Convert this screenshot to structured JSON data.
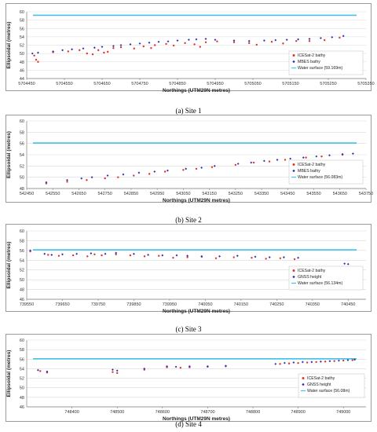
{
  "chart_data": [
    {
      "type": "scatter",
      "caption": "(a) Site 1",
      "xlabel": "Northings (UTM29N metres)",
      "ylabel": "Ellipsoidal (metres)",
      "xlim": [
        5704450,
        5705350
      ],
      "ylim": [
        44,
        60
      ],
      "xticks": [
        5704450,
        5704550,
        5704650,
        5704750,
        5704850,
        5704950,
        5705050,
        5705150,
        5705250,
        5705350
      ],
      "yticks": [
        44,
        46,
        48,
        50,
        52,
        54,
        56,
        58,
        60
      ],
      "legend_position": "right",
      "series": [
        {
          "name": "ICESat-2 bathy",
          "color": "#e8312a",
          "points": [
            [
              5704470,
              49.5
            ],
            [
              5704475,
              48.5
            ],
            [
              5704480,
              48
            ],
            [
              5704520,
              50.3
            ],
            [
              5704560,
              50.5
            ],
            [
              5704590,
              50.8
            ],
            [
              5704610,
              50
            ],
            [
              5704625,
              49.8
            ],
            [
              5704640,
              50.8
            ],
            [
              5704655,
              50.2
            ],
            [
              5704665,
              50.4
            ],
            [
              5704680,
              51.3
            ],
            [
              5704700,
              51.5
            ],
            [
              5704735,
              51.2
            ],
            [
              5704760,
              51.7
            ],
            [
              5704780,
              51.3
            ],
            [
              5704790,
              52
            ],
            [
              5704820,
              52.3
            ],
            [
              5704840,
              51.9
            ],
            [
              5704870,
              52.5
            ],
            [
              5704895,
              52.2
            ],
            [
              5704910,
              51.6
            ],
            [
              5704925,
              52.7
            ],
            [
              5704955,
              52.9
            ],
            [
              5705000,
              52.7
            ],
            [
              5705040,
              52.5
            ],
            [
              5705060,
              52.1
            ],
            [
              5705100,
              52.8
            ],
            [
              5705130,
              52.4
            ],
            [
              5705165,
              53
            ],
            [
              5705200,
              53
            ],
            [
              5705240,
              53.2
            ],
            [
              5705280,
              53.8
            ]
          ]
        },
        {
          "name": "MBES bathy",
          "color": "#2d2db5",
          "points": [
            [
              5704465,
              50
            ],
            [
              5704480,
              50.2
            ],
            [
              5704520,
              50.5
            ],
            [
              5704545,
              50.8
            ],
            [
              5704570,
              51
            ],
            [
              5704600,
              51.2
            ],
            [
              5704630,
              51.4
            ],
            [
              5704650,
              51.6
            ],
            [
              5704680,
              51.8
            ],
            [
              5704700,
              52
            ],
            [
              5704725,
              52.2
            ],
            [
              5704750,
              52.4
            ],
            [
              5704775,
              52.6
            ],
            [
              5704800,
              52.8
            ],
            [
              5704825,
              52.9
            ],
            [
              5704850,
              53.1
            ],
            [
              5704880,
              53.3
            ],
            [
              5704900,
              53.4
            ],
            [
              5704925,
              53.5
            ],
            [
              5704950,
              53.3
            ],
            [
              5705000,
              53.1
            ],
            [
              5705040,
              53
            ],
            [
              5705080,
              53.1
            ],
            [
              5705110,
              53.2
            ],
            [
              5705140,
              53.3
            ],
            [
              5705170,
              53.4
            ],
            [
              5705200,
              53.5
            ],
            [
              5705230,
              53.7
            ],
            [
              5705260,
              53.9
            ],
            [
              5705290,
              54.2
            ]
          ]
        }
      ],
      "water_surface": {
        "name": "Water surface (59.169m)",
        "y": 59.169,
        "color": "#3fc4e8"
      }
    },
    {
      "type": "scatter",
      "caption": "(b) Site 2",
      "xlabel": "Northings (UTM29N metres)",
      "ylabel": "Ellipsoidal (metres)",
      "xlim": [
        542450,
        543750
      ],
      "ylim": [
        48,
        60
      ],
      "xticks": [
        542450,
        542550,
        542650,
        542750,
        542850,
        542950,
        543050,
        543150,
        543250,
        543350,
        543450,
        543550,
        543650,
        543750
      ],
      "yticks": [
        48,
        50,
        52,
        54,
        56,
        58,
        60
      ],
      "legend_position": "right",
      "series": [
        {
          "name": "ICESat-2 bathy",
          "color": "#e8312a",
          "points": [
            [
              542525,
              48.9
            ],
            [
              542605,
              49.2
            ],
            [
              542680,
              49.5
            ],
            [
              542750,
              49.8
            ],
            [
              542800,
              50
            ],
            [
              542860,
              50.3
            ],
            [
              542920,
              50.6
            ],
            [
              542980,
              51
            ],
            [
              543050,
              51.3
            ],
            [
              543100,
              51.5
            ],
            [
              543160,
              51.8
            ],
            [
              543250,
              52.2
            ],
            [
              543320,
              52.6
            ],
            [
              543380,
              52.8
            ],
            [
              543440,
              53.1
            ],
            [
              543520,
              53.5
            ],
            [
              543580,
              53.7
            ],
            [
              543660,
              54
            ]
          ]
        },
        {
          "name": "MBES bathy",
          "color": "#2d2db5",
          "points": [
            [
              542525,
              49.1
            ],
            [
              542605,
              49.5
            ],
            [
              542660,
              49.8
            ],
            [
              542700,
              50
            ],
            [
              542760,
              50.3
            ],
            [
              542820,
              50.5
            ],
            [
              542880,
              50.8
            ],
            [
              542940,
              51
            ],
            [
              542990,
              51.2
            ],
            [
              543060,
              51.5
            ],
            [
              543120,
              51.7
            ],
            [
              543170,
              52
            ],
            [
              543260,
              52.4
            ],
            [
              543310,
              52.6
            ],
            [
              543360,
              52.9
            ],
            [
              543410,
              53.1
            ],
            [
              543460,
              53.3
            ],
            [
              543510,
              53.5
            ],
            [
              543560,
              53.7
            ],
            [
              543610,
              53.9
            ],
            [
              543660,
              54.1
            ],
            [
              543700,
              54.2
            ]
          ]
        }
      ],
      "water_surface": {
        "name": "Water surface (56.083m)",
        "y": 56.083,
        "color": "#3fc4e8"
      }
    },
    {
      "type": "scatter",
      "caption": "(c) Site 3",
      "xlabel": "Northings (UTM29N metres)",
      "ylabel": "Ellipsoidal (metres)",
      "xlim": [
        739550,
        740500
      ],
      "ylim": [
        46,
        60
      ],
      "xticks": [
        739550,
        739650,
        739750,
        739850,
        739950,
        740050,
        740150,
        740250,
        740350,
        740450
      ],
      "yticks": [
        46,
        48,
        50,
        52,
        54,
        56,
        58,
        60
      ],
      "legend_position": "right",
      "series": [
        {
          "name": "ICESat-2 bathy",
          "color": "#e8312a",
          "points": [
            [
              739560,
              55.8
            ],
            [
              739610,
              55.1
            ],
            [
              739640,
              54.9
            ],
            [
              739680,
              55
            ],
            [
              739720,
              54.8
            ],
            [
              739740,
              55.2
            ],
            [
              739760,
              55
            ],
            [
              739800,
              55.2
            ],
            [
              739840,
              55
            ],
            [
              739880,
              54.8
            ],
            [
              739920,
              54.9
            ],
            [
              739960,
              54.5
            ],
            [
              740000,
              54.6
            ],
            [
              740040,
              54.7
            ],
            [
              740080,
              54.4
            ],
            [
              740130,
              54.6
            ],
            [
              740180,
              54.5
            ],
            [
              740220,
              54.3
            ],
            [
              740260,
              54.4
            ],
            [
              740300,
              54.2
            ]
          ]
        },
        {
          "name": "GNSS height",
          "color": "#2d2db5",
          "points": [
            [
              739560,
              56
            ],
            [
              739600,
              55.3
            ],
            [
              739620,
              55.1
            ],
            [
              739650,
              55.2
            ],
            [
              739690,
              55.3
            ],
            [
              739730,
              55.4
            ],
            [
              739770,
              55.3
            ],
            [
              739800,
              55.5
            ],
            [
              739850,
              55.3
            ],
            [
              739890,
              55.1
            ],
            [
              739930,
              55
            ],
            [
              739970,
              55
            ],
            [
              740000,
              54.9
            ],
            [
              740040,
              54.8
            ],
            [
              740090,
              54.8
            ],
            [
              740140,
              54.9
            ],
            [
              740190,
              54.7
            ],
            [
              740230,
              54.6
            ],
            [
              740270,
              54.6
            ],
            [
              740310,
              54.5
            ],
            [
              740440,
              53.3
            ],
            [
              740450,
              53.2
            ]
          ]
        }
      ],
      "water_surface": {
        "name": "Water surface (56.134m)",
        "y": 56.134,
        "color": "#3fc4e8"
      }
    },
    {
      "type": "scatter",
      "caption": "(d) Site 4",
      "xlabel": "Northings (UTM29N metres)",
      "ylabel": "Ellipsoidal (metres)",
      "xlim": [
        748300,
        749050
      ],
      "ylim": [
        46,
        60
      ],
      "xticks": [
        748400,
        748500,
        748600,
        748700,
        748800,
        748900,
        749000
      ],
      "yticks": [
        46,
        48,
        50,
        52,
        54,
        56,
        58,
        60
      ],
      "legend_position": "right",
      "series": [
        {
          "name": "ICESat-2 bathy",
          "color": "#e8312a",
          "points": [
            [
              748330,
              53.5
            ],
            [
              748345,
              53.2
            ],
            [
              748490,
              53.3
            ],
            [
              748500,
              53.1
            ],
            [
              748560,
              53.8
            ],
            [
              748610,
              54.3
            ],
            [
              748640,
              54.2
            ],
            [
              748660,
              54.3
            ],
            [
              748700,
              54.4
            ],
            [
              748740,
              54.5
            ],
            [
              748860,
              55
            ],
            [
              748880,
              55.1
            ],
            [
              748900,
              55.2
            ],
            [
              748920,
              55.3
            ],
            [
              748940,
              55.4
            ],
            [
              748960,
              55.5
            ],
            [
              748980,
              55.6
            ],
            [
              749000,
              55.7
            ],
            [
              749020,
              55.8
            ]
          ]
        },
        {
          "name": "GNSS height",
          "color": "#2d2db5",
          "points": [
            [
              748325,
              53.7
            ],
            [
              748345,
              53.4
            ],
            [
              748490,
              53.8
            ],
            [
              748500,
              53.6
            ],
            [
              748560,
              54
            ],
            [
              748610,
              54.5
            ],
            [
              748630,
              54.4
            ],
            [
              748660,
              54.5
            ],
            [
              748700,
              54.5
            ],
            [
              748740,
              54.6
            ],
            [
              748850,
              55
            ],
            [
              748870,
              55.2
            ],
            [
              748890,
              55.3
            ],
            [
              748910,
              55.4
            ],
            [
              748930,
              55.4
            ],
            [
              748950,
              55.5
            ],
            [
              748970,
              55.6
            ],
            [
              748990,
              55.7
            ],
            [
              749010,
              55.8
            ],
            [
              749025,
              55.9
            ]
          ]
        }
      ],
      "water_surface": {
        "name": "Water surface (56.08m)",
        "y": 56.08,
        "color": "#3fc4e8"
      }
    }
  ]
}
